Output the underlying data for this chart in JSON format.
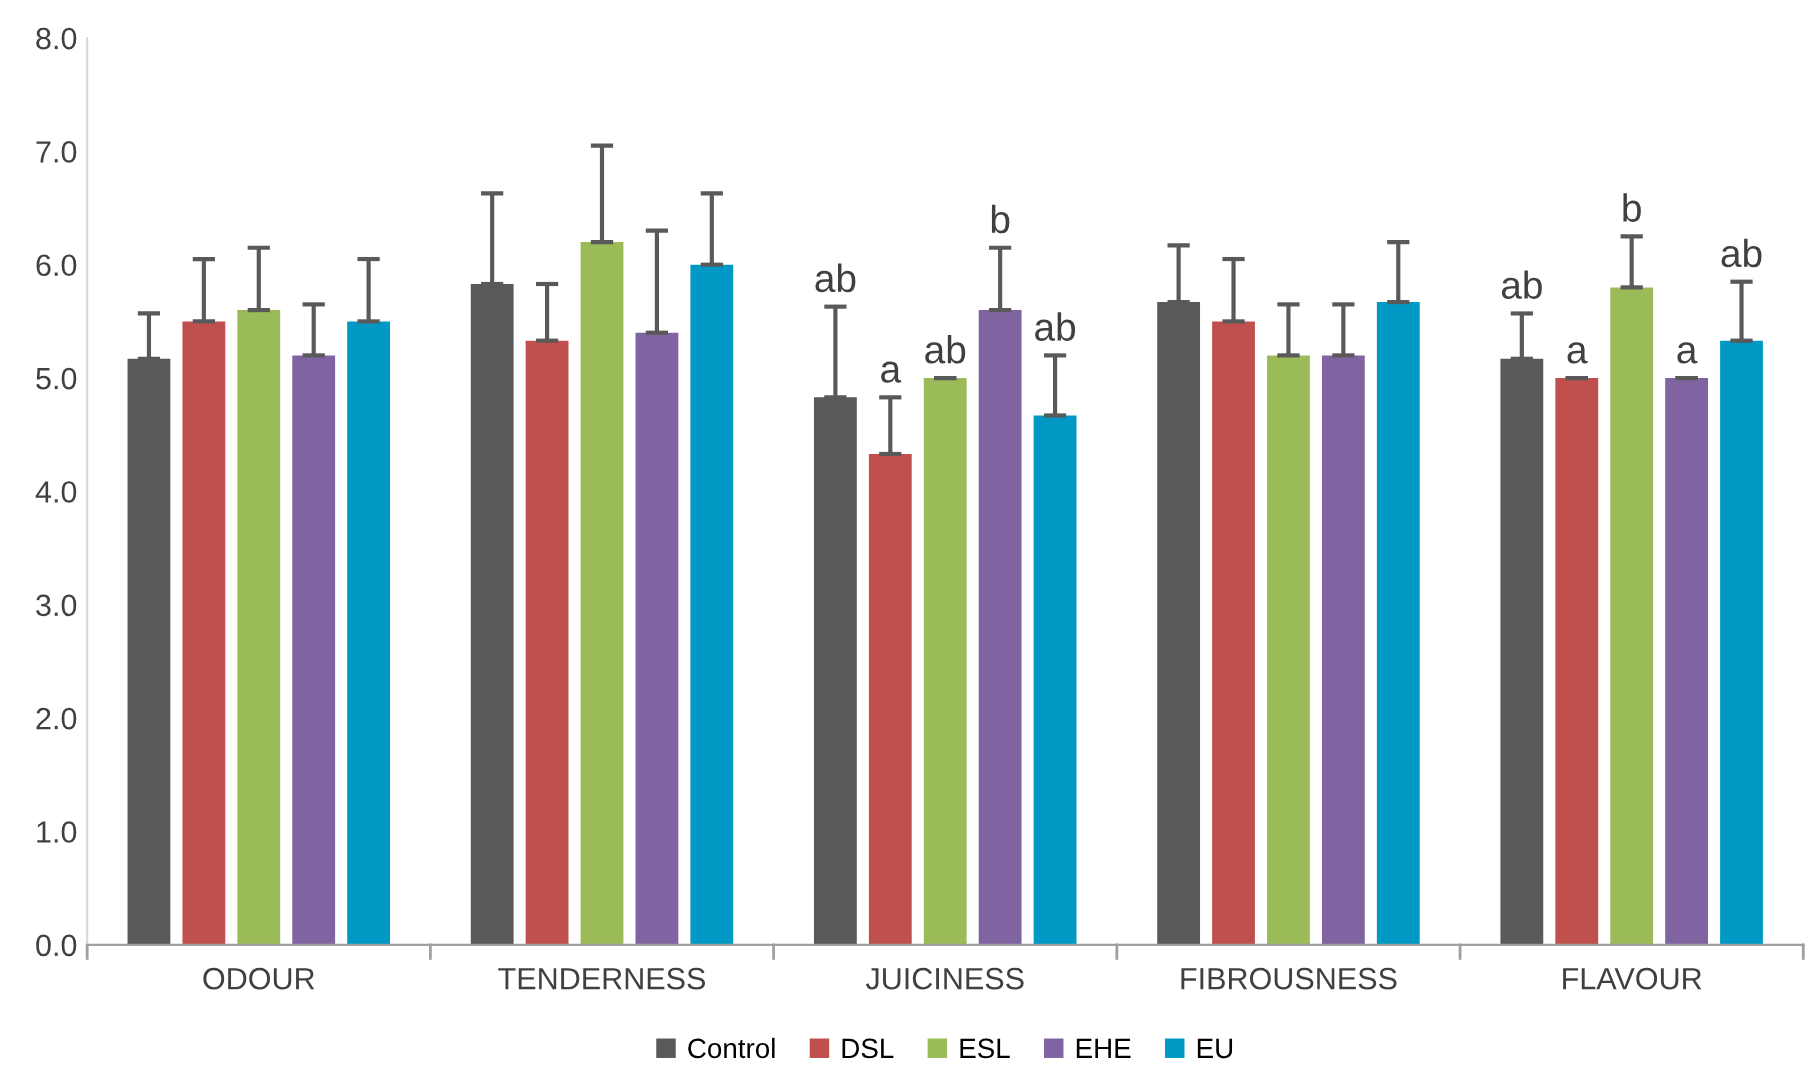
{
  "chart_data": {
    "type": "bar",
    "categories": [
      "ODOUR",
      "TENDERNESS",
      "JUICINESS",
      "FIBROUSNESS",
      "FLAVOUR"
    ],
    "series": [
      {
        "name": "Control",
        "color": "#595959",
        "values": [
          5.17,
          5.83,
          4.83,
          5.67,
          5.17
        ],
        "errors": [
          0.4,
          0.8,
          0.8,
          0.5,
          0.4
        ],
        "value_labels": [
          null,
          null,
          "ab",
          null,
          "ab"
        ]
      },
      {
        "name": "DSL",
        "color": "#c0504d",
        "values": [
          5.5,
          5.33,
          4.33,
          5.5,
          5.0
        ],
        "errors": [
          0.55,
          0.5,
          0.5,
          0.55,
          0
        ],
        "value_labels": [
          null,
          null,
          "a",
          null,
          "a"
        ]
      },
      {
        "name": "ESL",
        "color": "#9bbb59",
        "values": [
          5.6,
          6.2,
          5.0,
          5.2,
          5.8
        ],
        "errors": [
          0.55,
          0.85,
          0,
          0.45,
          0.45
        ],
        "value_labels": [
          null,
          null,
          "ab",
          null,
          "b"
        ]
      },
      {
        "name": "EHE",
        "color": "#8064a2",
        "values": [
          5.2,
          5.4,
          5.6,
          5.2,
          5.0
        ],
        "errors": [
          0.45,
          0.9,
          0.55,
          0.45,
          0
        ],
        "value_labels": [
          null,
          null,
          "b",
          null,
          "a"
        ]
      },
      {
        "name": "EU",
        "color": "#0099c6",
        "values": [
          5.5,
          6.0,
          4.67,
          5.67,
          5.33
        ],
        "errors": [
          0.55,
          0.63,
          0.53,
          0.53,
          0.52
        ],
        "value_labels": [
          null,
          null,
          "ab",
          null,
          "ab"
        ]
      }
    ],
    "ylim": [
      0,
      8
    ],
    "yticks": [
      {
        "value": 0,
        "label": "0.0"
      },
      {
        "value": 1,
        "label": "1.0"
      },
      {
        "value": 2,
        "label": "2.0"
      },
      {
        "value": 3,
        "label": "3.0"
      },
      {
        "value": 4,
        "label": "4.0"
      },
      {
        "value": 5,
        "label": "5.0"
      },
      {
        "value": 6,
        "label": "6.0"
      },
      {
        "value": 7,
        "label": "7.0"
      },
      {
        "value": 8,
        "label": "8.0"
      }
    ],
    "legend": "bottom",
    "grid": false
  }
}
